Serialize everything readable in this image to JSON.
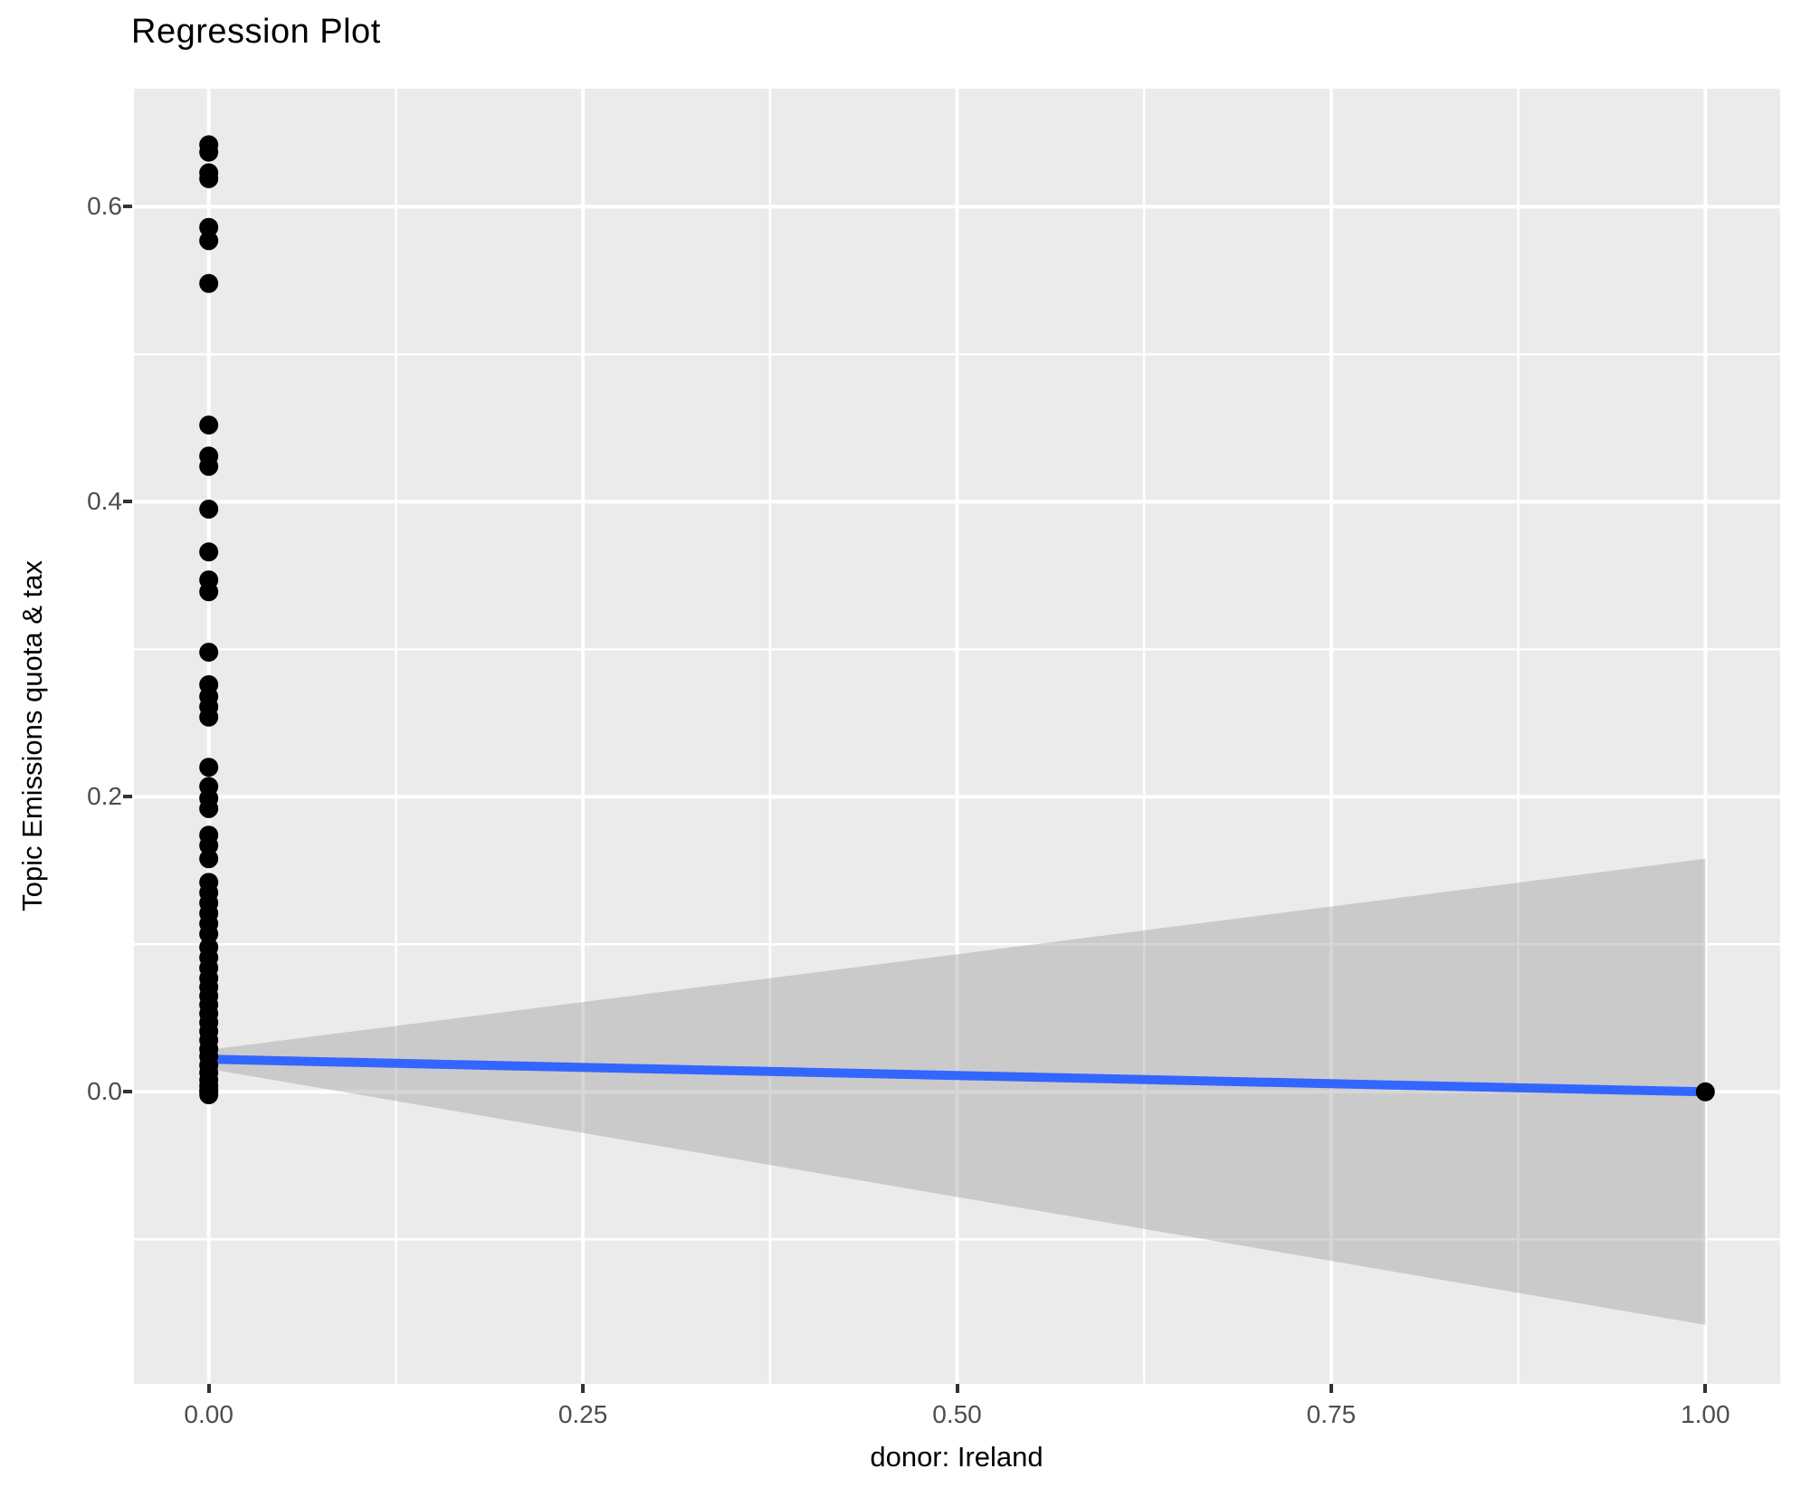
{
  "title": "Regression Plot",
  "chart_data": {
    "type": "scatter",
    "title": "Regression Plot",
    "xlabel": "donor: Ireland",
    "ylabel": "Topic Emissions quota & tax",
    "x_domain": [
      -0.05,
      1.05
    ],
    "y_domain": [
      -0.198,
      0.68
    ],
    "grid": true,
    "legend": "none",
    "x_ticks": {
      "values": [
        0.0,
        0.25,
        0.5,
        0.75,
        1.0
      ],
      "labels": [
        "0.00",
        "0.25",
        "0.50",
        "0.75",
        "1.00"
      ]
    },
    "y_ticks": {
      "values": [
        0.0,
        0.2,
        0.4,
        0.6
      ],
      "labels": [
        "0.0",
        "0.2",
        "0.4",
        "0.6"
      ]
    },
    "x_minor_gridlines": [
      0.125,
      0.375,
      0.625,
      0.875
    ],
    "y_minor_gridlines": [
      -0.1,
      0.1,
      0.3,
      0.5
    ],
    "points": [
      [
        0,
        0.642
      ],
      [
        0,
        0.637
      ],
      [
        0,
        0.623
      ],
      [
        0,
        0.619
      ],
      [
        0,
        0.586
      ],
      [
        0,
        0.577
      ],
      [
        0,
        0.548
      ],
      [
        0,
        0.452
      ],
      [
        0,
        0.431
      ],
      [
        0,
        0.424
      ],
      [
        0,
        0.395
      ],
      [
        0,
        0.366
      ],
      [
        0,
        0.347
      ],
      [
        0,
        0.339
      ],
      [
        0,
        0.298
      ],
      [
        0,
        0.276
      ],
      [
        0,
        0.268
      ],
      [
        0,
        0.261
      ],
      [
        0,
        0.254
      ],
      [
        0,
        0.22
      ],
      [
        0,
        0.207
      ],
      [
        0,
        0.199
      ],
      [
        0,
        0.192
      ],
      [
        0,
        0.174
      ],
      [
        0,
        0.167
      ],
      [
        0,
        0.158
      ],
      [
        0,
        0.142
      ],
      [
        0,
        0.135
      ],
      [
        0,
        0.128
      ],
      [
        0,
        0.121
      ],
      [
        0,
        0.114
      ],
      [
        0,
        0.107
      ],
      [
        0,
        0.098
      ],
      [
        0,
        0.091
      ],
      [
        0,
        0.084
      ],
      [
        0,
        0.077
      ],
      [
        0,
        0.071
      ],
      [
        0,
        0.065
      ],
      [
        0,
        0.059
      ],
      [
        0,
        0.053
      ],
      [
        0,
        0.047
      ],
      [
        0,
        0.041
      ],
      [
        0,
        0.035
      ],
      [
        0,
        0.029
      ],
      [
        0,
        0.024
      ],
      [
        0,
        0.018
      ],
      [
        0,
        0.013
      ],
      [
        0,
        0.008
      ],
      [
        0,
        0.004
      ],
      [
        0,
        0.001
      ],
      [
        0,
        0.0
      ],
      [
        0,
        -0.002
      ],
      [
        1,
        0.0
      ]
    ],
    "regression_line": {
      "x": [
        0,
        1
      ],
      "y": [
        0.0221,
        0.0
      ]
    },
    "confidence_band": {
      "x": [
        0,
        1
      ],
      "upper": [
        0.0285,
        0.158
      ],
      "lower": [
        0.0155,
        -0.158
      ]
    },
    "colors": {
      "panel_background": "#EBEBEB",
      "gridline": "#FFFFFF",
      "point": "#000000",
      "regression_line": "#3366FF",
      "confidence_band_fill": "rgba(153,153,153,0.4)",
      "tick_label": "#4D4D4D",
      "tick_mark": "#333333",
      "text": "#000000"
    }
  }
}
